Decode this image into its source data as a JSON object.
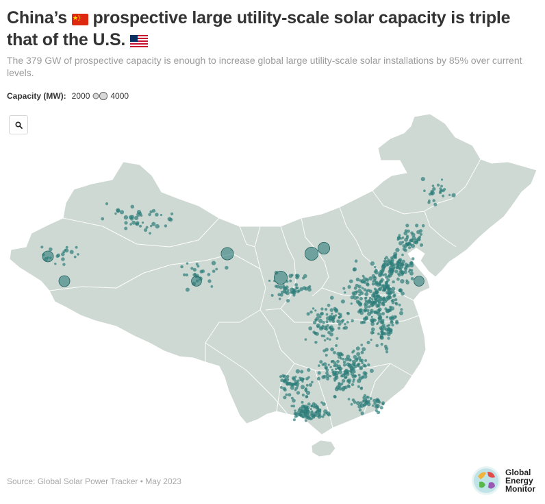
{
  "title_part1": "China’s",
  "title_part2": "prospective large utility-scale solar capacity is triple that of the U.S.",
  "subtitle": "The 379 GW of prospective capacity is enough to increase global large utility-scale solar installations by 85% over current levels.",
  "legend": {
    "title": "Capacity (MW):",
    "min_label": "2000",
    "max_label": "4000"
  },
  "map": {
    "region": "China",
    "land_color": "#cfd9d3",
    "border_color": "#ffffff",
    "point_color": "#2e7d7b",
    "icons": [
      "search-icon",
      "china-flag-icon",
      "us-flag-icon"
    ],
    "large_plants_mw": [
      4000,
      4000,
      3500,
      3000,
      2500,
      2500,
      2000,
      2000
    ]
  },
  "source": "Source: Global Solar Power Tracker • May 2023",
  "logo": {
    "line1": "Global",
    "line2": "Energy",
    "line3": "Monitor"
  }
}
